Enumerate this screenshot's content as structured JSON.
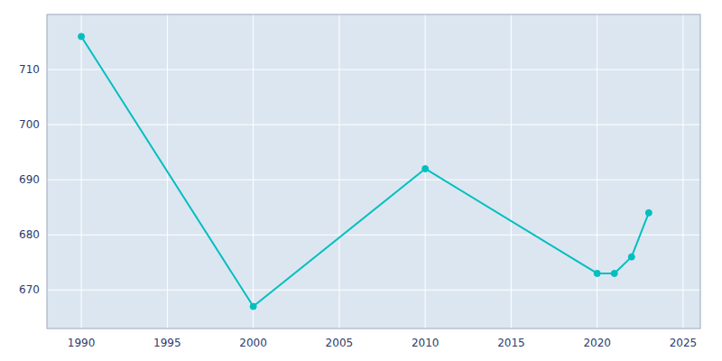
{
  "chart_data": {
    "type": "line",
    "x": [
      1990,
      2000,
      2010,
      2020,
      2021,
      2022,
      2023
    ],
    "values": [
      716,
      667,
      692,
      673,
      673,
      676,
      684
    ],
    "color": "#00BFBF",
    "marker": "circle",
    "xlim": [
      1988,
      2026
    ],
    "ylim": [
      663,
      720
    ],
    "xticks": [
      1990,
      1995,
      2000,
      2005,
      2010,
      2015,
      2020,
      2025
    ],
    "yticks": [
      670,
      680,
      690,
      700,
      710
    ],
    "grid": true
  }
}
